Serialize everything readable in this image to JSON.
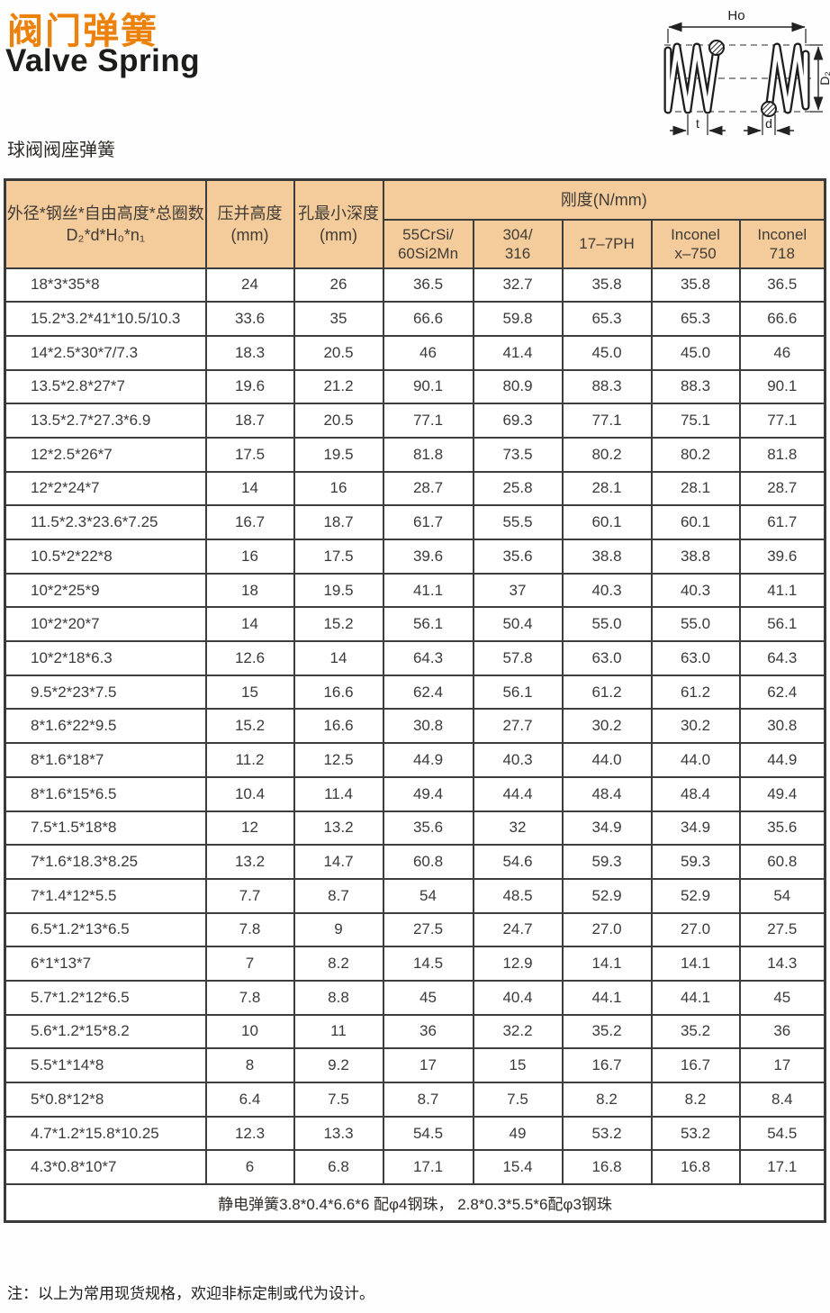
{
  "page": {
    "title_cn": "阀门弹簧",
    "title_en": "Valve Spring",
    "subtitle": "球阀阀座弹簧",
    "note": "注：以上为常用现货规格，欢迎非标定制或代为设计。"
  },
  "diagram": {
    "free_height_label": "Ho",
    "outer_diameter_label": "D₂",
    "pitch_label": "t",
    "wire_diameter_label": "d"
  },
  "table": {
    "header": {
      "spec_line1": "外径*钢丝*自由高度*总圈数",
      "spec_line2": "D₂*d*H₀*n₁",
      "solid_height": "压并高度",
      "hole_depth": "孔最小深度",
      "mm": "(mm)",
      "stiffness_group": "刚度(N/mm)",
      "materials": [
        [
          "55CrSi/",
          "60Si2Mn"
        ],
        [
          "304/",
          "316"
        ],
        [
          "17–7PH"
        ],
        [
          "Inconel",
          "x–750"
        ],
        [
          "Inconel",
          "718"
        ]
      ]
    },
    "rows": [
      [
        "18*3*35*8",
        "24",
        "26",
        "36.5",
        "32.7",
        "35.8",
        "35.8",
        "36.5"
      ],
      [
        "15.2*3.2*41*10.5/10.3",
        "33.6",
        "35",
        "66.6",
        "59.8",
        "65.3",
        "65.3",
        "66.6"
      ],
      [
        "14*2.5*30*7/7.3",
        "18.3",
        "20.5",
        "46",
        "41.4",
        "45.0",
        "45.0",
        "46"
      ],
      [
        "13.5*2.8*27*7",
        "19.6",
        "21.2",
        "90.1",
        "80.9",
        "88.3",
        "88.3",
        "90.1"
      ],
      [
        "13.5*2.7*27.3*6.9",
        "18.7",
        "20.5",
        "77.1",
        "69.3",
        "77.1",
        "75.1",
        "77.1"
      ],
      [
        "12*2.5*26*7",
        "17.5",
        "19.5",
        "81.8",
        "73.5",
        "80.2",
        "80.2",
        "81.8"
      ],
      [
        "12*2*24*7",
        "14",
        "16",
        "28.7",
        "25.8",
        "28.1",
        "28.1",
        "28.7"
      ],
      [
        "11.5*2.3*23.6*7.25",
        "16.7",
        "18.7",
        "61.7",
        "55.5",
        "60.1",
        "60.1",
        "61.7"
      ],
      [
        "10.5*2*22*8",
        "16",
        "17.5",
        "39.6",
        "35.6",
        "38.8",
        "38.8",
        "39.6"
      ],
      [
        "10*2*25*9",
        "18",
        "19.5",
        "41.1",
        "37",
        "40.3",
        "40.3",
        "41.1"
      ],
      [
        "10*2*20*7",
        "14",
        "15.2",
        "56.1",
        "50.4",
        "55.0",
        "55.0",
        "56.1"
      ],
      [
        "10*2*18*6.3",
        "12.6",
        "14",
        "64.3",
        "57.8",
        "63.0",
        "63.0",
        "64.3"
      ],
      [
        "9.5*2*23*7.5",
        "15",
        "16.6",
        "62.4",
        "56.1",
        "61.2",
        "61.2",
        "62.4"
      ],
      [
        "8*1.6*22*9.5",
        "15.2",
        "16.6",
        "30.8",
        "27.7",
        "30.2",
        "30.2",
        "30.8"
      ],
      [
        "8*1.6*18*7",
        "11.2",
        "12.5",
        "44.9",
        "40.3",
        "44.0",
        "44.0",
        "44.9"
      ],
      [
        "8*1.6*15*6.5",
        "10.4",
        "11.4",
        "49.4",
        "44.4",
        "48.4",
        "48.4",
        "49.4"
      ],
      [
        "7.5*1.5*18*8",
        "12",
        "13.2",
        "35.6",
        "32",
        "34.9",
        "34.9",
        "35.6"
      ],
      [
        "7*1.6*18.3*8.25",
        "13.2",
        "14.7",
        "60.8",
        "54.6",
        "59.3",
        "59.3",
        "60.8"
      ],
      [
        "7*1.4*12*5.5",
        "7.7",
        "8.7",
        "54",
        "48.5",
        "52.9",
        "52.9",
        "54"
      ],
      [
        "6.5*1.2*13*6.5",
        "7.8",
        "9",
        "27.5",
        "24.7",
        "27.0",
        "27.0",
        "27.5"
      ],
      [
        "6*1*13*7",
        "7",
        "8.2",
        "14.5",
        "12.9",
        "14.1",
        "14.1",
        "14.3"
      ],
      [
        "5.7*1.2*12*6.5",
        "7.8",
        "8.8",
        "45",
        "40.4",
        "44.1",
        "44.1",
        "45"
      ],
      [
        "5.6*1.2*15*8.2",
        "10",
        "11",
        "36",
        "32.2",
        "35.2",
        "35.2",
        "36"
      ],
      [
        "5.5*1*14*8",
        "8",
        "9.2",
        "17",
        "15",
        "16.7",
        "16.7",
        "17"
      ],
      [
        "5*0.8*12*8",
        "6.4",
        "7.5",
        "8.7",
        "7.5",
        "8.2",
        "8.2",
        "8.4"
      ],
      [
        "4.7*1.2*15.8*10.25",
        "12.3",
        "13.3",
        "54.5",
        "49",
        "53.2",
        "53.2",
        "54.5"
      ],
      [
        "4.3*0.8*10*7",
        "6",
        "6.8",
        "17.1",
        "15.4",
        "16.8",
        "16.8",
        "17.1"
      ]
    ],
    "footer": "静电弹簧3.8*0.4*6.6*6 配φ4钢珠，  2.8*0.3*5.5*6配φ3钢珠"
  },
  "colors": {
    "accent_orange": "#EC820C",
    "header_bg": "#F4CC9C",
    "table_border": "#3d3d3d"
  }
}
